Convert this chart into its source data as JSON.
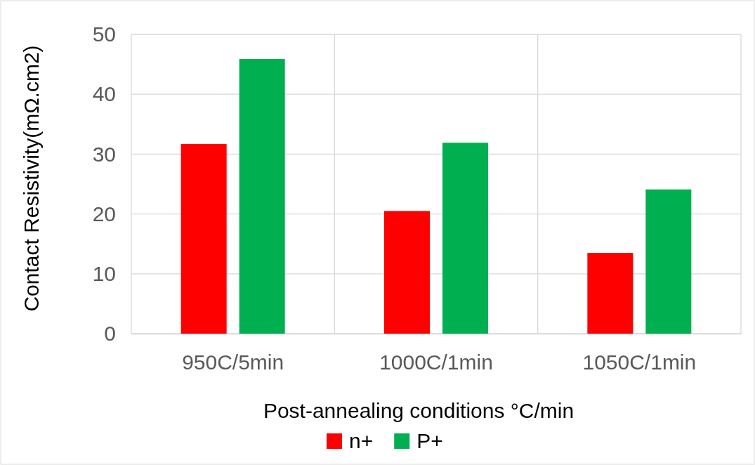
{
  "chart_data": {
    "type": "bar",
    "xlabel": "Post-annealing conditions °C/min",
    "ylabel": "Contact Resistivity(mΩ.cm2)",
    "categories": [
      "950C/5min",
      "1000C/1min",
      "1050C/1min"
    ],
    "series": [
      {
        "name": "n+",
        "color": "#ff0000",
        "values": [
          31.7,
          20.5,
          13.5
        ]
      },
      {
        "name": "P+",
        "color": "#00b050",
        "values": [
          45.9,
          31.9,
          24.1
        ]
      }
    ],
    "ylim": [
      0,
      50
    ],
    "yticks": [
      0,
      10,
      20,
      30,
      40,
      50
    ],
    "grid": true,
    "legend": "bottom"
  }
}
